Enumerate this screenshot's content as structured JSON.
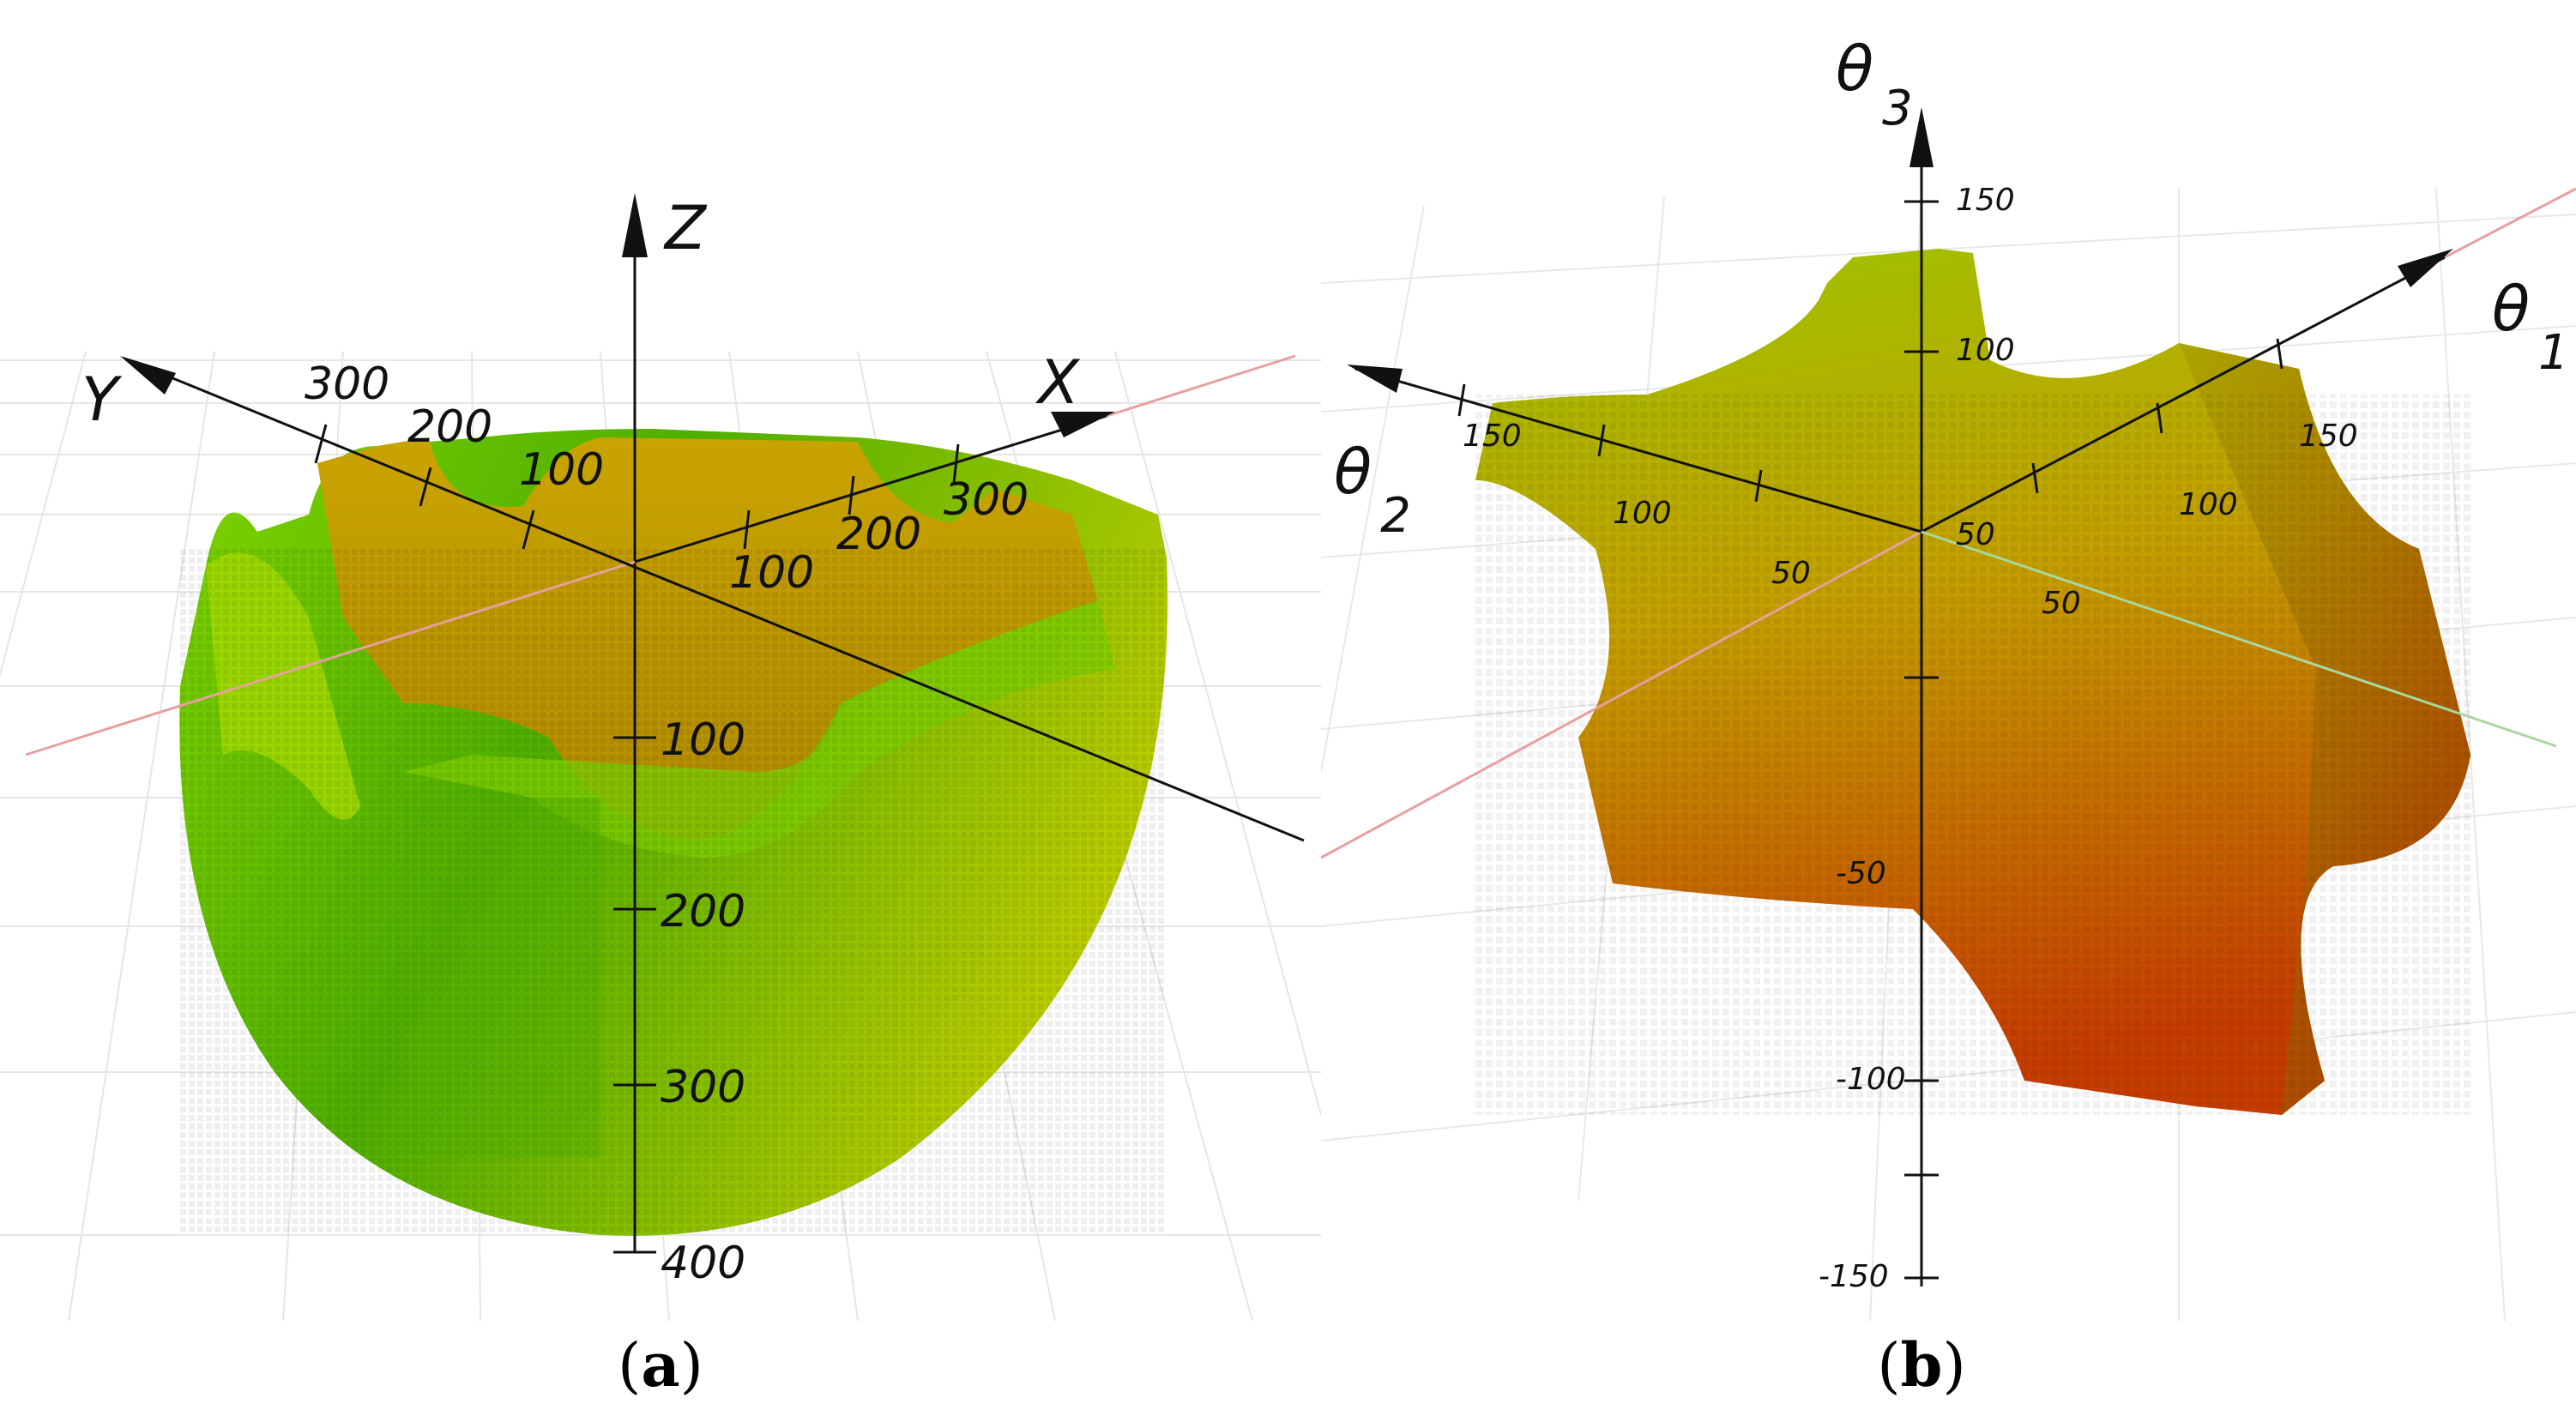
{
  "panel_a": {
    "axis_labels": {
      "z": "Z",
      "x": "X",
      "y": "Y"
    },
    "x_ticks": [
      "100",
      "200",
      "300"
    ],
    "y_ticks": [
      "100",
      "200",
      "300"
    ],
    "z_ticks": [
      "100",
      "200",
      "300",
      "400"
    ],
    "caption_letter": "a",
    "colors": {
      "body_light": "#8ee000",
      "body_dark": "#3da000",
      "rim": "#c8b000"
    }
  },
  "panel_b": {
    "axis_labels": {
      "t3": "θ",
      "t3_sub": "3",
      "t1": "θ",
      "t1_sub": "1",
      "t2": "θ",
      "t2_sub": "2"
    },
    "t3_ticks": [
      "150",
      "100",
      "50",
      "-50",
      "-100",
      "-150"
    ],
    "t1_ticks": [
      "50",
      "100",
      "150"
    ],
    "t2_ticks": [
      "50",
      "100",
      "150"
    ],
    "caption_letter": "b",
    "colors": {
      "top": "#9dc000",
      "mid": "#c79a00",
      "bottom": "#c83a00"
    }
  }
}
